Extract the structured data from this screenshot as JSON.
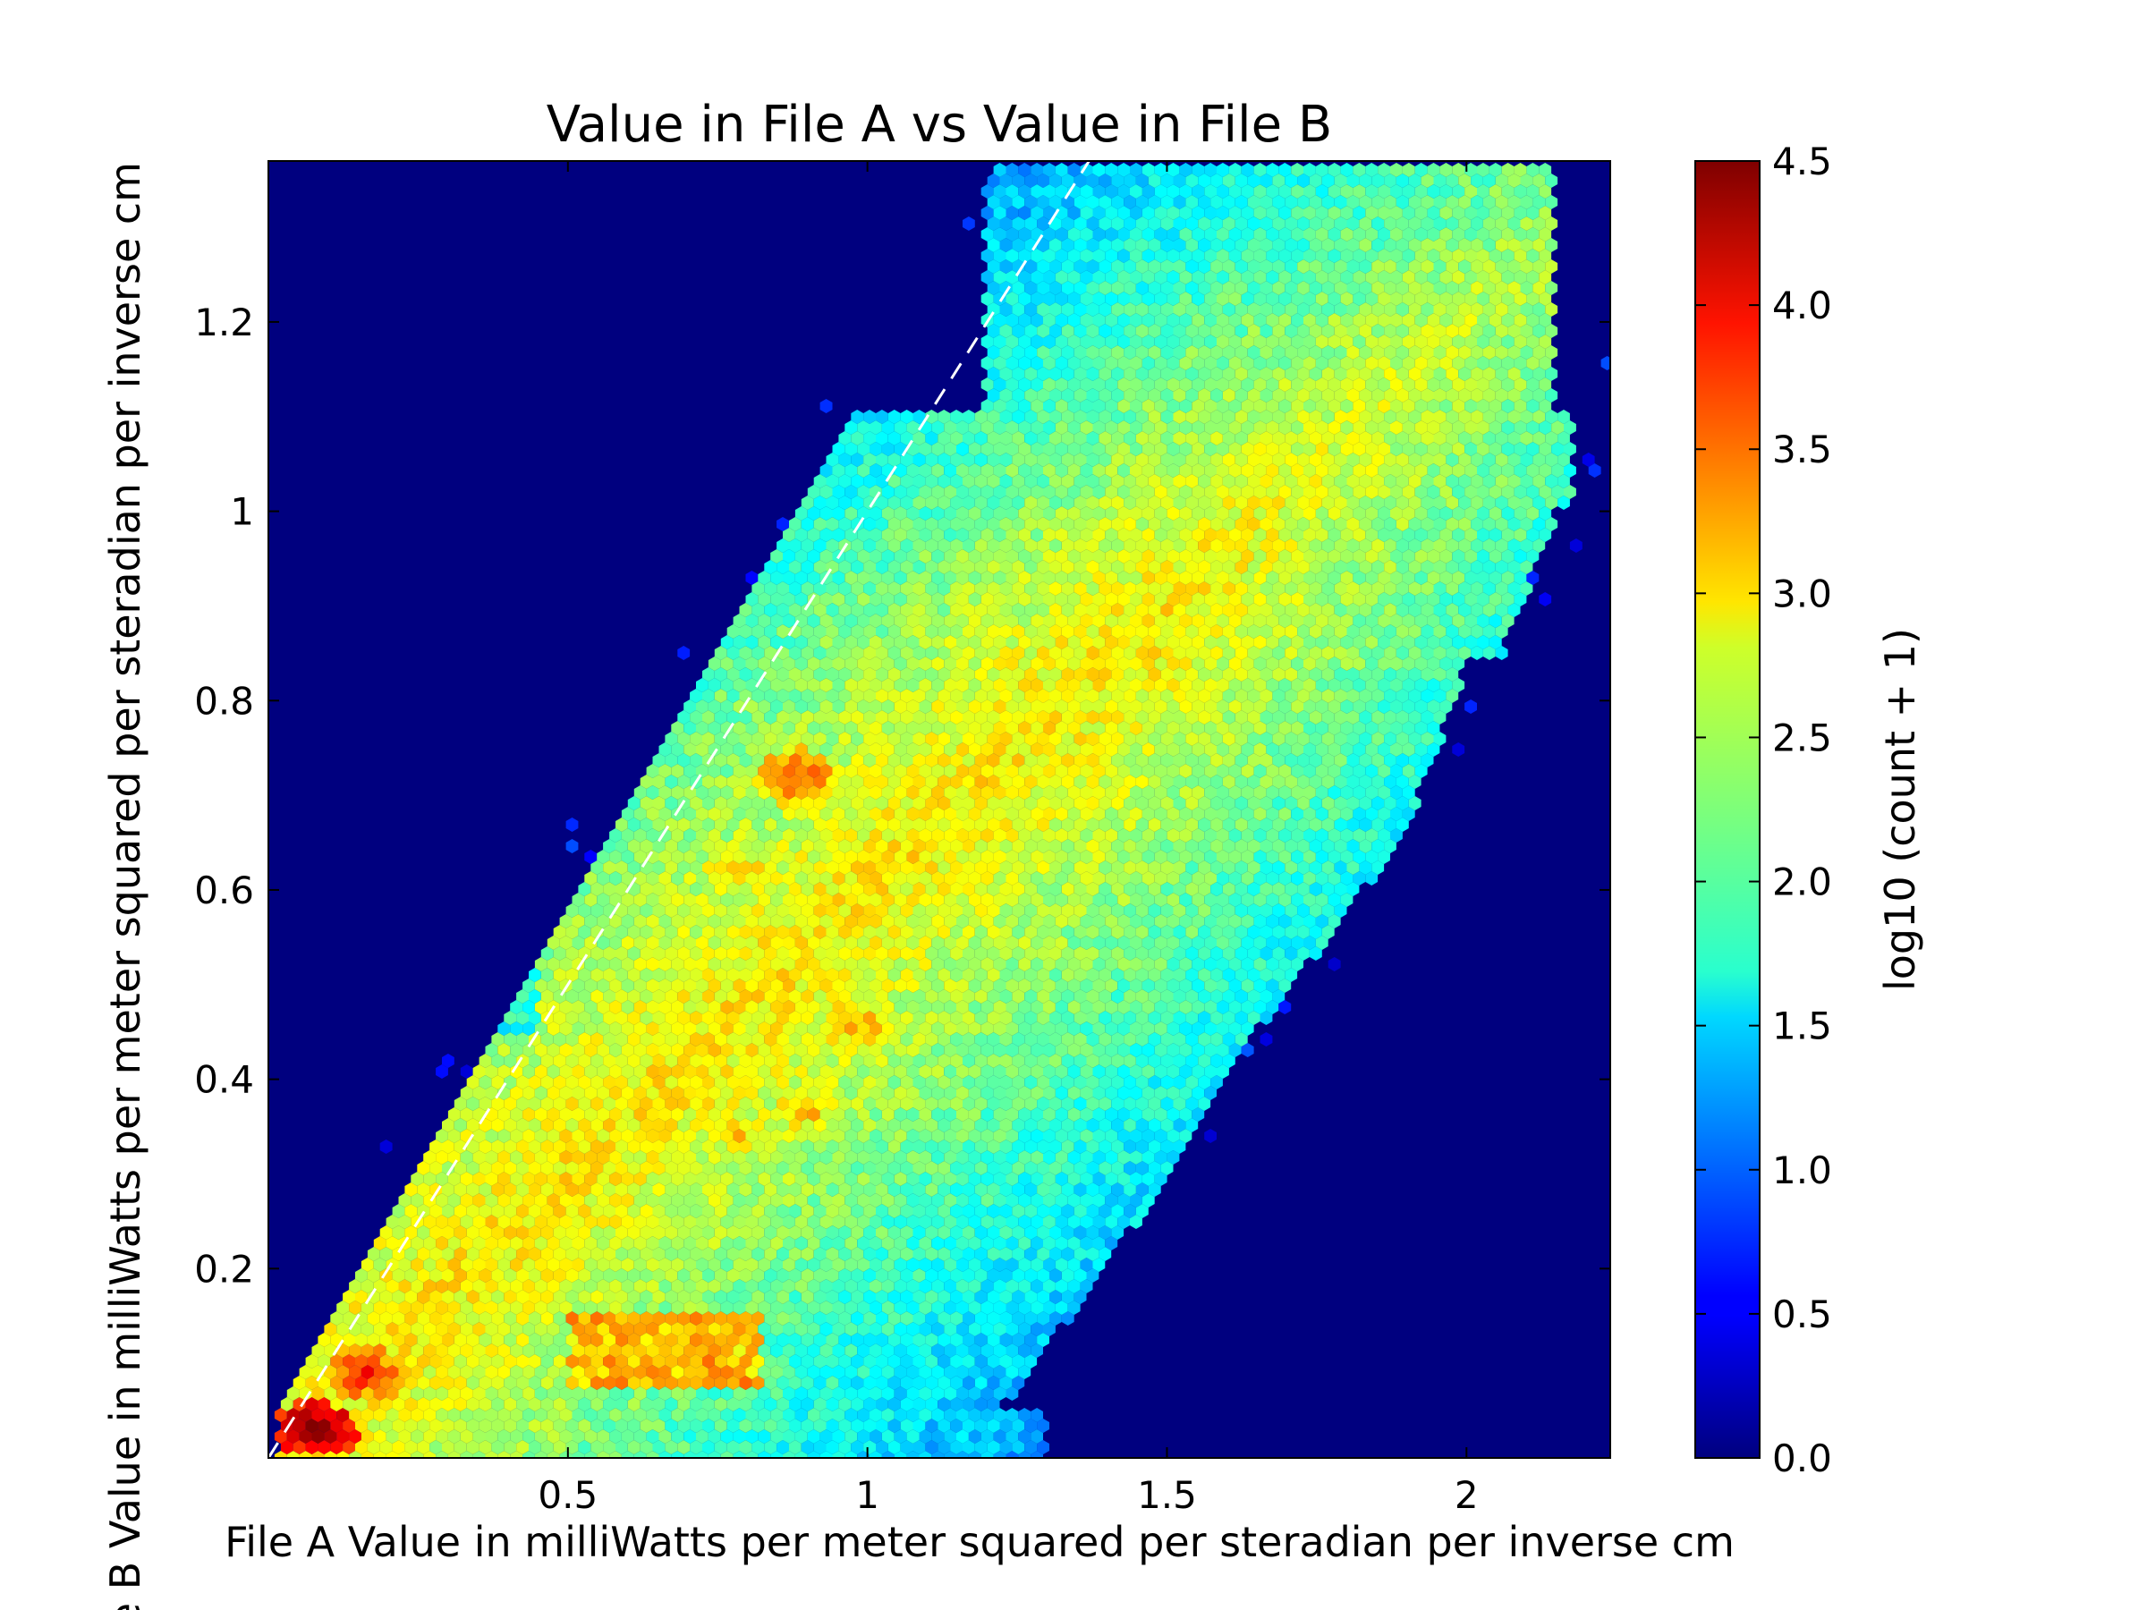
{
  "chart_data": {
    "type": "heatmap",
    "subtype": "hexbin",
    "title": "Value in File A vs Value in File B",
    "xlabel": "File A Value in milliWatts per meter squared per steradian per inverse cm",
    "ylabel": "File B Value in milliWatts per meter squared per steradian per inverse cm",
    "xlim": [
      0.0,
      2.24
    ],
    "ylim": [
      0.0,
      1.37
    ],
    "x_ticks": [
      0.5,
      1,
      1.5,
      2
    ],
    "x_tick_labels": [
      "0.5",
      "1",
      "1.5",
      "2"
    ],
    "y_ticks": [
      0.2,
      0.4,
      0.6,
      0.8,
      1.0,
      1.2
    ],
    "y_tick_labels": [
      "0.2",
      "0.4",
      "0.6",
      "0.8",
      "1",
      "1.2"
    ],
    "grid": false,
    "colormap": "jet",
    "background_color": "#00007f",
    "colorbar": {
      "label": "log10 (count + 1)",
      "range": [
        0.0,
        4.5
      ],
      "ticks": [
        0.0,
        0.5,
        1.0,
        1.5,
        2.0,
        2.5,
        3.0,
        3.5,
        4.0,
        4.5
      ],
      "tick_labels": [
        "0.0",
        "0.5",
        "1.0",
        "1.5",
        "2.0",
        "2.5",
        "3.0",
        "3.5",
        "4.0",
        "4.5"
      ]
    },
    "reference_line": {
      "style": "dashed",
      "color": "#ffffff",
      "slope": 1,
      "intercept": 0
    },
    "density_features": [
      {
        "x": 0.08,
        "y": 0.03,
        "value": 4.5
      },
      {
        "x": 0.16,
        "y": 0.09,
        "value": 3.8
      },
      {
        "x": 0.6,
        "y": 0.12,
        "value": 3.3
      },
      {
        "x": 0.88,
        "y": 0.72,
        "value": 3.6
      },
      {
        "x": 0.78,
        "y": 0.62,
        "value": 3.2
      },
      {
        "x": 0.98,
        "y": 0.46,
        "value": 3.3
      },
      {
        "x": 0.9,
        "y": 0.37,
        "value": 3.2
      },
      {
        "x": 0.78,
        "y": 0.34,
        "value": 3.1
      },
      {
        "x": 0.88,
        "y": 0.52,
        "value": 3.0
      }
    ]
  }
}
